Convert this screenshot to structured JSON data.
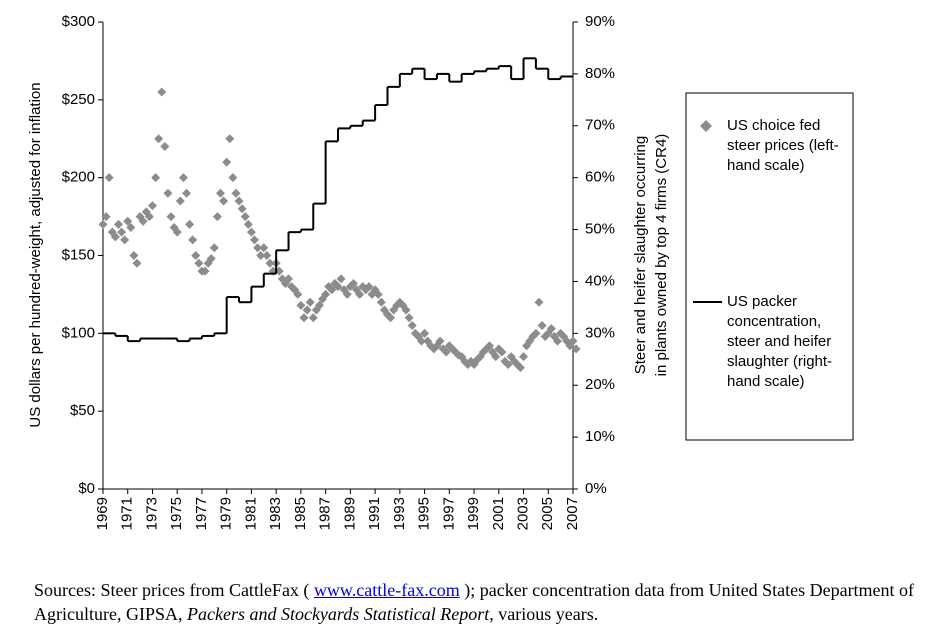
{
  "chart_data": {
    "type": "combo",
    "ylabel": "US dollars per hundred-weight, adjusted for inflation",
    "y2label": [
      "Steer and heifer slaughter occurring",
      "in plants owned by top 4 firms (CR4)"
    ],
    "xlim": [
      1969,
      2007
    ],
    "xticks": [
      1969,
      1971,
      1973,
      1975,
      1977,
      1979,
      1981,
      1983,
      1985,
      1987,
      1989,
      1991,
      1993,
      1995,
      1997,
      1999,
      2001,
      2003,
      2005,
      2007
    ],
    "ylim": [
      0,
      300
    ],
    "yticks": [
      {
        "value": 0,
        "label": "$0"
      },
      {
        "value": 50,
        "label": "$50"
      },
      {
        "value": 100,
        "label": "$100"
      },
      {
        "value": 150,
        "label": "$150"
      },
      {
        "value": 200,
        "label": "$200"
      },
      {
        "value": 250,
        "label": "$250"
      },
      {
        "value": 300,
        "label": "$300"
      }
    ],
    "y2lim": [
      0,
      90
    ],
    "y2ticks": [
      {
        "value": 0,
        "label": "0%"
      },
      {
        "value": 10,
        "label": "10%"
      },
      {
        "value": 20,
        "label": "20%"
      },
      {
        "value": 30,
        "label": "30%"
      },
      {
        "value": 40,
        "label": "40%"
      },
      {
        "value": 50,
        "label": "50%"
      },
      {
        "value": 60,
        "label": "60%"
      },
      {
        "value": 70,
        "label": "70%"
      },
      {
        "value": 80,
        "label": "80%"
      },
      {
        "value": 90,
        "label": "90%"
      }
    ],
    "series": [
      {
        "name": "US choice fed steer prices (left-hand scale)",
        "type": "scatter",
        "color": "#8c8c8c",
        "values": [
          170,
          175,
          200,
          165,
          162,
          170,
          165,
          160,
          172,
          168,
          150,
          145,
          175,
          172,
          178,
          175,
          182,
          200,
          225,
          255,
          220,
          190,
          175,
          168,
          165,
          185,
          200,
          190,
          170,
          160,
          150,
          145,
          140,
          140,
          145,
          148,
          155,
          175,
          190,
          185,
          210,
          225,
          200,
          190,
          185,
          180,
          175,
          170,
          165,
          160,
          155,
          150,
          155,
          150,
          145,
          140,
          145,
          140,
          135,
          132,
          135,
          130,
          128,
          125,
          118,
          110,
          115,
          120,
          110,
          115,
          118,
          122,
          125,
          130,
          128,
          132,
          130,
          135,
          128,
          125,
          130,
          132,
          128,
          125,
          130,
          128,
          130,
          125,
          128,
          125,
          120,
          115,
          112,
          110,
          115,
          118,
          120,
          118,
          115,
          110,
          105,
          100,
          98,
          95,
          100,
          95,
          92,
          90,
          92,
          95,
          90,
          88,
          92,
          90,
          88,
          86,
          85,
          82,
          80,
          82,
          80,
          83,
          85,
          88,
          90,
          92,
          88,
          85,
          90,
          88,
          82,
          80,
          85,
          82,
          80,
          78,
          85,
          92,
          95,
          98,
          100,
          120,
          105,
          98,
          100,
          103,
          98,
          95,
          100,
          98,
          95,
          92,
          95,
          90
        ]
      },
      {
        "name": "US packer concentration, steer and heifer slaughter (right-hand scale)",
        "type": "step",
        "axis": "y2",
        "color": "#000000",
        "x": [
          1969,
          1970,
          1971,
          1972,
          1973,
          1974,
          1975,
          1976,
          1977,
          1978,
          1979,
          1980,
          1981,
          1982,
          1983,
          1984,
          1985,
          1986,
          1987,
          1988,
          1989,
          1990,
          1991,
          1992,
          1993,
          1994,
          1995,
          1996,
          1997,
          1998,
          1999,
          2000,
          2001,
          2002,
          2003,
          2004,
          2005,
          2006
        ],
        "values": [
          30,
          29.5,
          28.5,
          29,
          29,
          29,
          28.5,
          29,
          29.5,
          30,
          37,
          36,
          39,
          41.5,
          46,
          49.5,
          50,
          55,
          67,
          69.5,
          70,
          71,
          74,
          77.5,
          80,
          81,
          79,
          80,
          78.5,
          80,
          80.5,
          81,
          81.5,
          79,
          83,
          81,
          79,
          79.5
        ]
      }
    ],
    "sources": {
      "prefix": "Sources:  Steer prices from CattleFax ( ",
      "link": "www.cattle-fax.com",
      "middle": " ); packer concentration data from United States Department of Agriculture, GIPSA, ",
      "italic": "Packers and Stockyards Statistical Report",
      "suffix": ", various years."
    }
  }
}
